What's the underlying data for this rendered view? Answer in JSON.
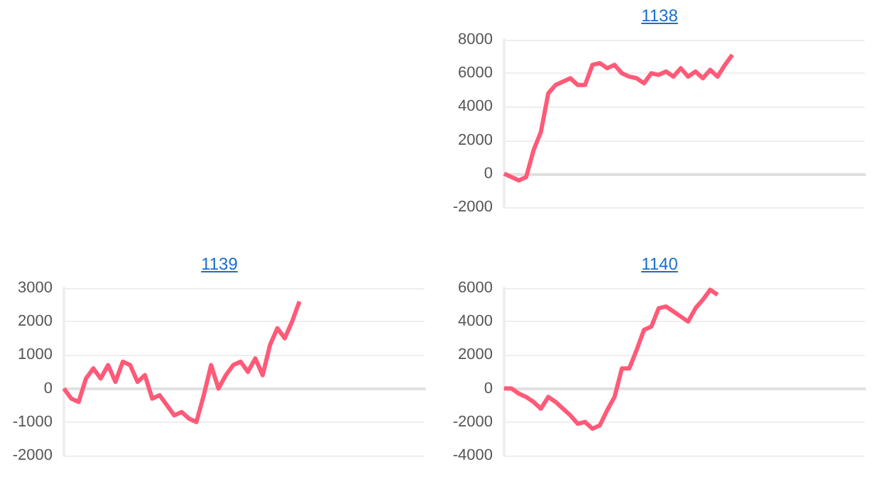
{
  "chart_data": [
    {
      "type": "line",
      "title": "1138",
      "categories": [
        null,
        null,
        null,
        null,
        null,
        null,
        null,
        null,
        null,
        null,
        null,
        null,
        null,
        null,
        null,
        null,
        null,
        null,
        null,
        null,
        null,
        null,
        null,
        null,
        null,
        null,
        null,
        null,
        null,
        null,
        null,
        null,
        null,
        null,
        null,
        null,
        null,
        null,
        null,
        null,
        null,
        null,
        null,
        null,
        null,
        null,
        null,
        null,
        null,
        null
      ],
      "series": [
        {
          "color": "#ff5a78",
          "values": [
            0,
            -200,
            -400,
            -200,
            1400,
            2500,
            4800,
            5300,
            5500,
            5700,
            5300,
            5300,
            6500,
            6600,
            6300,
            6500,
            6000,
            5800,
            5700,
            5400,
            6000,
            5900,
            6100,
            5800,
            6300,
            5800,
            6100,
            5700,
            6200,
            5800,
            6500,
            7100,
            null,
            null,
            null,
            null,
            null,
            null,
            null,
            null,
            null,
            null,
            null,
            null,
            null,
            null,
            null,
            null,
            null,
            null
          ]
        }
      ],
      "ylim": [
        -2000,
        8000
      ],
      "yticks": [
        -2000,
        0,
        2000,
        4000,
        6000,
        8000
      ],
      "grid": "y",
      "tick_labels": "y"
    },
    {
      "type": "line",
      "title": "1139",
      "categories": [
        null,
        null,
        null,
        null,
        null,
        null,
        null,
        null,
        null,
        null,
        null,
        null,
        null,
        null,
        null,
        null,
        null,
        null,
        null,
        null,
        null,
        null,
        null,
        null,
        null,
        null,
        null,
        null,
        null,
        null,
        null,
        null,
        null,
        null,
        null,
        null,
        null,
        null,
        null,
        null,
        null,
        null,
        null,
        null,
        null,
        null,
        null,
        null,
        null,
        null
      ],
      "series": [
        {
          "color": "#ff5a78",
          "values": [
            0,
            -300,
            -400,
            300,
            600,
            300,
            700,
            200,
            800,
            700,
            200,
            400,
            -300,
            -200,
            -500,
            -800,
            -700,
            -900,
            -1000,
            -200,
            700,
            0,
            400,
            700,
            800,
            500,
            900,
            400,
            1300,
            1800,
            1500,
            2000,
            2600,
            null,
            null,
            null,
            null,
            null,
            null,
            null,
            null,
            null,
            null,
            null,
            null,
            null,
            null,
            null,
            null,
            null
          ]
        }
      ],
      "ylim": [
        -2000,
        3000
      ],
      "yticks": [
        -2000,
        -1000,
        0,
        1000,
        2000,
        3000
      ],
      "grid": "y",
      "tick_labels": "y"
    },
    {
      "type": "line",
      "title": "1140",
      "categories": [
        null,
        null,
        null,
        null,
        null,
        null,
        null,
        null,
        null,
        null,
        null,
        null,
        null,
        null,
        null,
        null,
        null,
        null,
        null,
        null,
        null,
        null,
        null,
        null,
        null,
        null,
        null,
        null,
        null,
        null,
        null,
        null,
        null,
        null,
        null,
        null,
        null,
        null,
        null,
        null,
        null,
        null,
        null,
        null,
        null,
        null,
        null,
        null,
        null,
        null
      ],
      "series": [
        {
          "color": "#ff5a78",
          "values": [
            0,
            0,
            -300,
            -500,
            -800,
            -1200,
            -500,
            -800,
            -1200,
            -1600,
            -2100,
            -2000,
            -2400,
            -2200,
            -1300,
            -500,
            1200,
            1200,
            2300,
            3500,
            3700,
            4800,
            4900,
            4600,
            4300,
            4000,
            4800,
            5300,
            5900,
            5600,
            null,
            null,
            null,
            null,
            null,
            null,
            null,
            null,
            null,
            null,
            null,
            null,
            null,
            null,
            null,
            null,
            null,
            null,
            null,
            null
          ]
        }
      ],
      "ylim": [
        -4000,
        6000
      ],
      "yticks": [
        -4000,
        -2000,
        0,
        2000,
        4000,
        6000
      ],
      "grid": "y",
      "tick_labels": "y"
    }
  ]
}
